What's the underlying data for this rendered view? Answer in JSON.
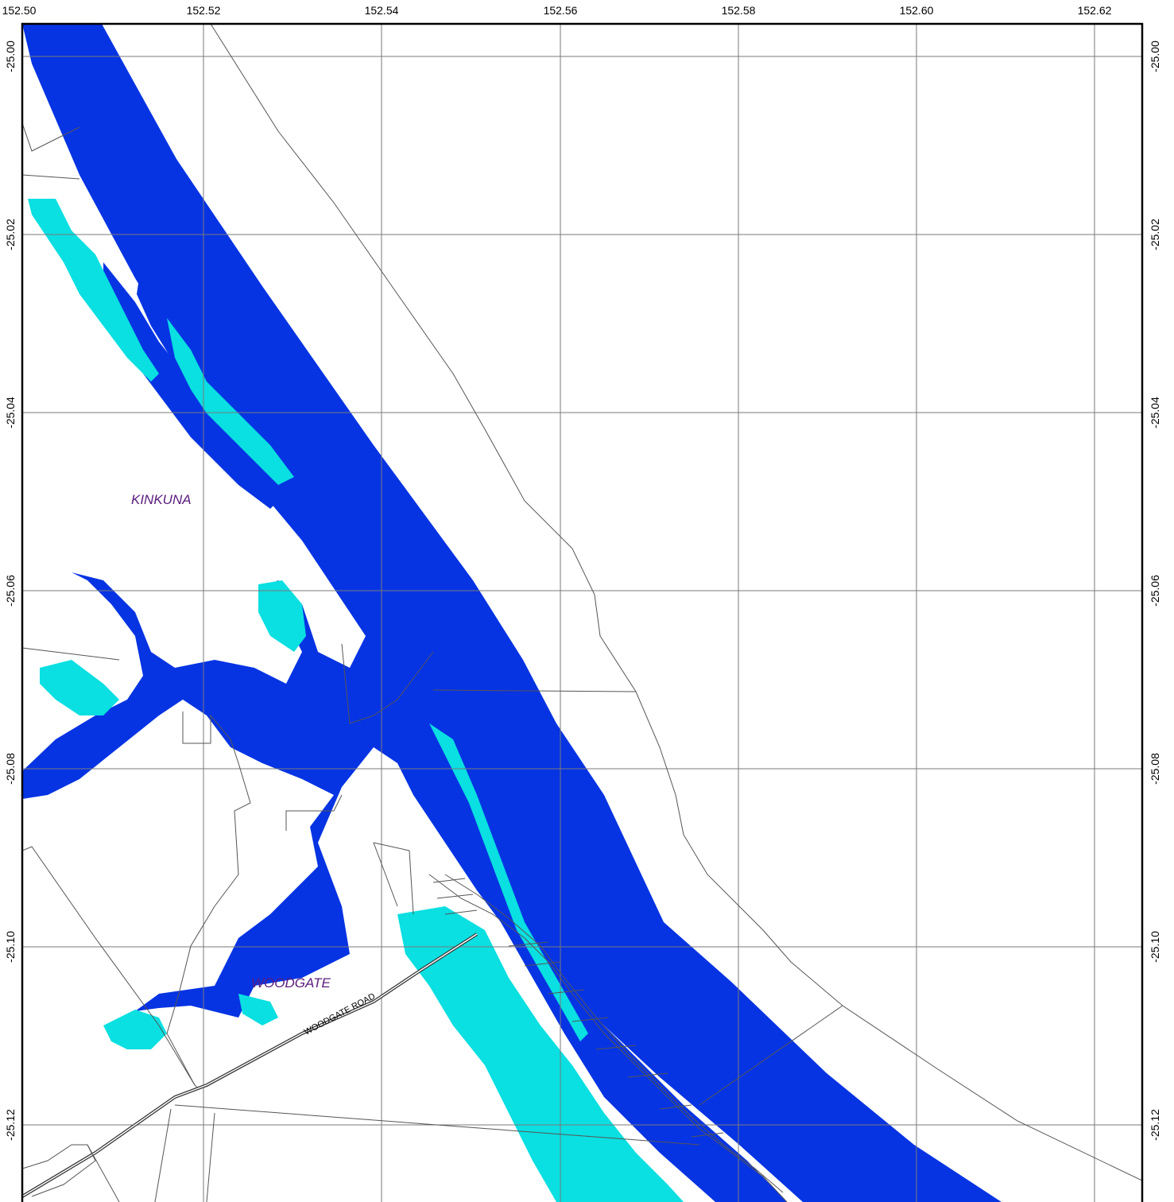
{
  "map": {
    "colors": {
      "deep_water": "#0634e3",
      "shallow_water": "#0adfe1",
      "grid": "#7a7a7a",
      "boundary": "#555555",
      "road": "#333333",
      "place_label": "#5b1c7e",
      "frame": "#000000"
    },
    "longitude_labels": [
      "152.50",
      "152.52",
      "152.54",
      "152.56",
      "152.58",
      "152.60",
      "152.62"
    ],
    "latitude_labels": [
      "-25.00",
      "-25.02",
      "-25.04",
      "-25.06",
      "-25.08",
      "-25.10",
      "-25.12"
    ],
    "places": {
      "kinkuna": "KINKUNA",
      "woodgate": "WOODGATE"
    },
    "roads": {
      "woodgate_road": "WOODGATE ROAD"
    }
  }
}
